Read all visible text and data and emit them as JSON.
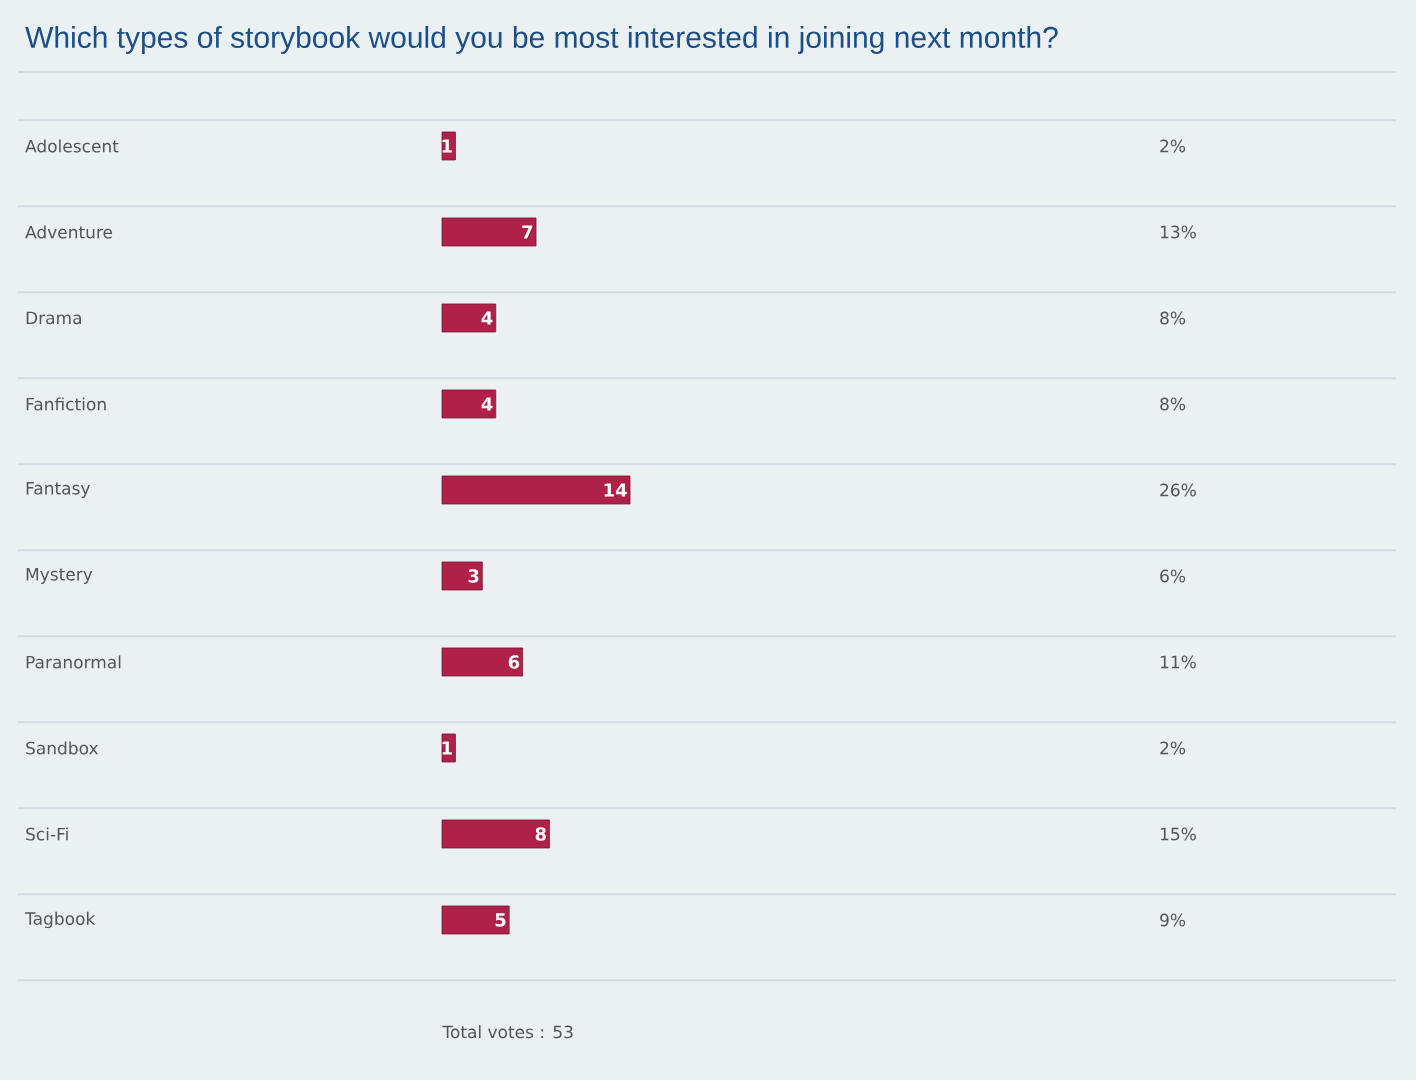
{
  "chart_data": {
    "type": "bar",
    "orientation": "horizontal",
    "title": "Which types of storybook would you be most interested in joining next month?",
    "categories": [
      "Adolescent",
      "Adventure",
      "Drama",
      "Fanfiction",
      "Fantasy",
      "Mystery",
      "Paranormal",
      "Sandbox",
      "Sci-Fi",
      "Tagbook"
    ],
    "values": [
      1,
      7,
      4,
      4,
      14,
      3,
      6,
      1,
      8,
      5
    ],
    "color": "#b0214a",
    "data_labels": true,
    "annotations": [
      "2%",
      "13%",
      "8%",
      "8%",
      "26%",
      "6%",
      "11%",
      "2%",
      "15%",
      "9%",
      "Total votes : 53"
    ]
  }
}
